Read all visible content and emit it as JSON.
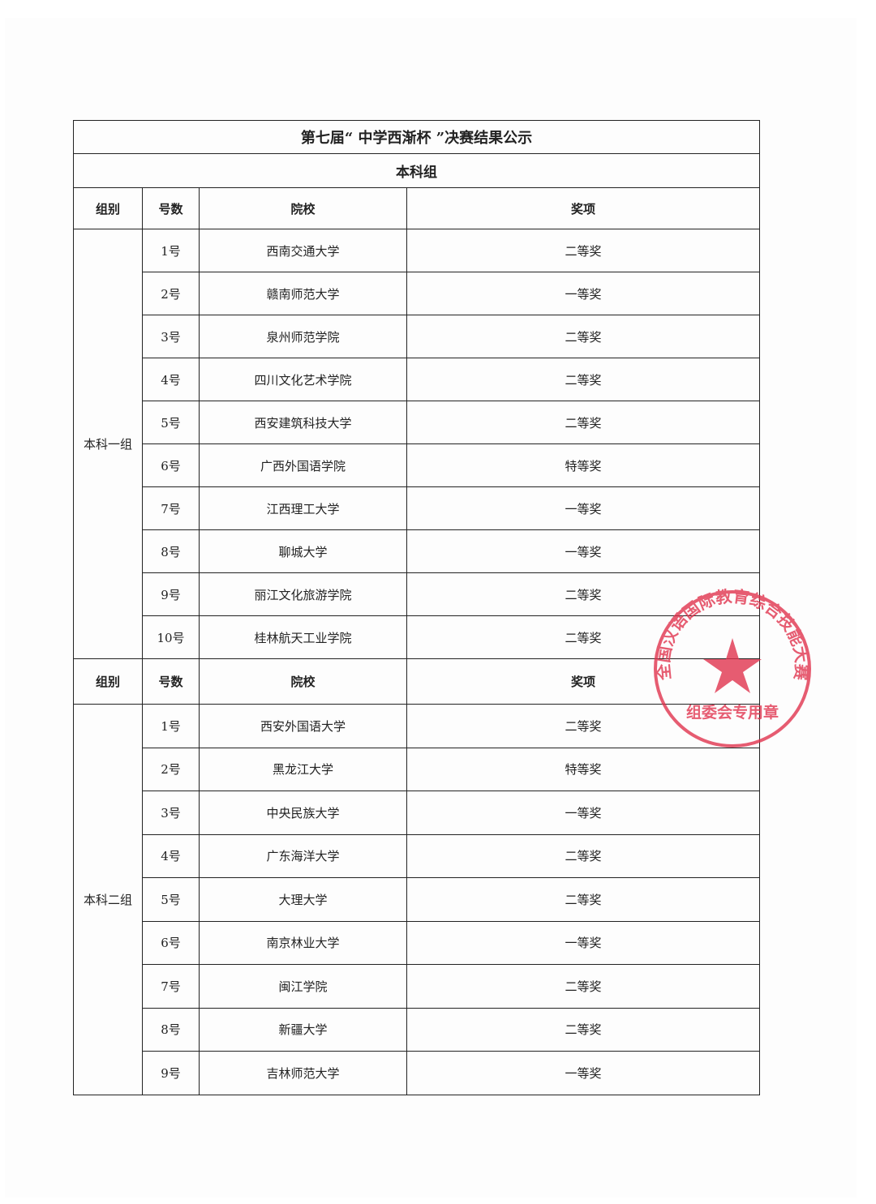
{
  "title": "第七届“ 中学西渐杯 ”决赛结果公示",
  "subtitle": "本科组",
  "headers": {
    "group": "组别",
    "number": "号数",
    "school": "院校",
    "award": "奖项"
  },
  "groups": [
    {
      "name": "本科一组",
      "rows": [
        {
          "no": "1号",
          "school": "西南交通大学",
          "award": "二等奖"
        },
        {
          "no": "2号",
          "school": "赣南师范大学",
          "award": "一等奖"
        },
        {
          "no": "3号",
          "school": "泉州师范学院",
          "award": "二等奖"
        },
        {
          "no": "4号",
          "school": "四川文化艺术学院",
          "award": "二等奖"
        },
        {
          "no": "5号",
          "school": "西安建筑科技大学",
          "award": "二等奖"
        },
        {
          "no": "6号",
          "school": "广西外国语学院",
          "award": "特等奖"
        },
        {
          "no": "7号",
          "school": "江西理工大学",
          "award": "一等奖"
        },
        {
          "no": "8号",
          "school": "聊城大学",
          "award": "一等奖"
        },
        {
          "no": "9号",
          "school": "丽江文化旅游学院",
          "award": "二等奖"
        },
        {
          "no": "10号",
          "school": "桂林航天工业学院",
          "award": "二等奖"
        }
      ]
    },
    {
      "name": "本科二组",
      "rows": [
        {
          "no": "1号",
          "school": "西安外国语大学",
          "award": "二等奖"
        },
        {
          "no": "2号",
          "school": "黑龙江大学",
          "award": "特等奖"
        },
        {
          "no": "3号",
          "school": "中央民族大学",
          "award": "一等奖"
        },
        {
          "no": "4号",
          "school": "广东海洋大学",
          "award": "二等奖"
        },
        {
          "no": "5号",
          "school": "大理大学",
          "award": "二等奖"
        },
        {
          "no": "6号",
          "school": "南京林业大学",
          "award": "一等奖"
        },
        {
          "no": "7号",
          "school": "闽江学院",
          "award": "二等奖"
        },
        {
          "no": "8号",
          "school": "新疆大学",
          "award": "二等奖"
        },
        {
          "no": "9号",
          "school": "吉林师范大学",
          "award": "一等奖"
        }
      ]
    }
  ],
  "stamp": {
    "outer_text": "全国汉语国际教育综合技能大赛",
    "inner_text": "组委会专用章",
    "color": "#e0304a"
  }
}
